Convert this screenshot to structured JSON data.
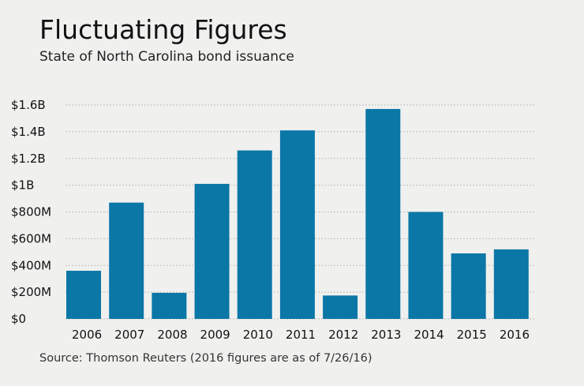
{
  "header": {
    "title": "Fluctuating Figures",
    "subtitle": "State of North Carolina bond issuance"
  },
  "footer": {
    "source": "Source: Thomson Reuters (2016 figures are as of 7/26/16)"
  },
  "colors": {
    "bar": "#0a77a6",
    "grid": "#bdbdbd",
    "background": "#f0f0ef"
  },
  "chart_data": {
    "type": "bar",
    "title": "Fluctuating Figures",
    "subtitle": "State of North Carolina bond issuance",
    "xlabel": "",
    "ylabel": "",
    "unit": "USD",
    "categories": [
      "2006",
      "2007",
      "2008",
      "2009",
      "2010",
      "2011",
      "2012",
      "2013",
      "2014",
      "2015",
      "2016"
    ],
    "values": [
      360000000,
      870000000,
      195000000,
      1010000000,
      1260000000,
      1410000000,
      175000000,
      1570000000,
      800000000,
      490000000,
      520000000
    ],
    "ylim": [
      0,
      1600000000
    ],
    "yticks": [
      0,
      200000000,
      400000000,
      600000000,
      800000000,
      1000000000,
      1200000000,
      1400000000,
      1600000000
    ],
    "ytick_labels": [
      "$0",
      "$200M",
      "$400M",
      "$600M",
      "$800M",
      "$1B",
      "$1.2B",
      "$1.4B",
      "$1.6B"
    ],
    "grid": true,
    "legend": "none"
  }
}
